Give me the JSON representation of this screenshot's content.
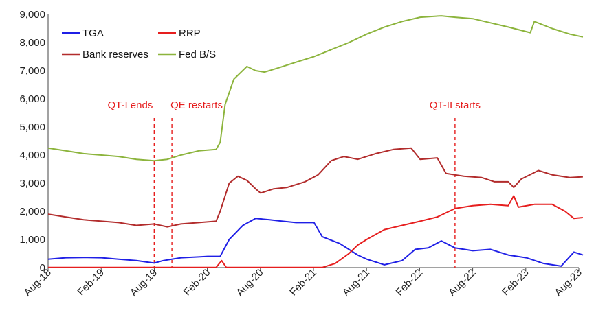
{
  "chart_data": {
    "type": "line",
    "title": "",
    "xlabel": "",
    "ylabel": "",
    "ylim": [
      0,
      9000
    ],
    "yticks": [
      "0",
      "1,000",
      "2,000",
      "3,000",
      "4,000",
      "5,000",
      "6,000",
      "7,000",
      "8,000",
      "9,000"
    ],
    "ytick_values": [
      0,
      1000,
      2000,
      3000,
      4000,
      5000,
      6000,
      7000,
      8000,
      9000
    ],
    "xticks": [
      "Aug-18",
      "Feb-19",
      "Aug-19",
      "Feb-20",
      "Aug-20",
      "Feb-21",
      "Aug-21",
      "Feb-22",
      "Aug-22",
      "Feb-23",
      "Aug-23"
    ],
    "grid": false,
    "legend_position": "top-left",
    "series": [
      {
        "name": "TGA",
        "color": "#1f1fe6",
        "values": [
          [
            "2018-08-01",
            300
          ],
          [
            "2018-10-01",
            350
          ],
          [
            "2018-12-01",
            360
          ],
          [
            "2019-02-01",
            350
          ],
          [
            "2019-04-01",
            300
          ],
          [
            "2019-06-01",
            250
          ],
          [
            "2019-08-01",
            160
          ],
          [
            "2019-09-01",
            250
          ],
          [
            "2019-11-01",
            350
          ],
          [
            "2020-01-01",
            380
          ],
          [
            "2020-02-01",
            400
          ],
          [
            "2020-03-15",
            400
          ],
          [
            "2020-04-15",
            1000
          ],
          [
            "2020-06-01",
            1500
          ],
          [
            "2020-07-15",
            1750
          ],
          [
            "2020-09-01",
            1700
          ],
          [
            "2020-10-15",
            1650
          ],
          [
            "2020-12-01",
            1600
          ],
          [
            "2021-02-01",
            1600
          ],
          [
            "2021-03-01",
            1100
          ],
          [
            "2021-05-01",
            850
          ],
          [
            "2021-07-01",
            450
          ],
          [
            "2021-08-01",
            300
          ],
          [
            "2021-10-01",
            100
          ],
          [
            "2021-12-01",
            250
          ],
          [
            "2022-01-15",
            650
          ],
          [
            "2022-03-01",
            700
          ],
          [
            "2022-04-15",
            950
          ],
          [
            "2022-06-01",
            700
          ],
          [
            "2022-08-01",
            600
          ],
          [
            "2022-10-01",
            650
          ],
          [
            "2022-12-01",
            450
          ],
          [
            "2023-02-01",
            350
          ],
          [
            "2023-04-01",
            150
          ],
          [
            "2023-06-01",
            50
          ],
          [
            "2023-07-15",
            550
          ],
          [
            "2023-08-15",
            450
          ]
        ]
      },
      {
        "name": "RRP",
        "color": "#e61e1e",
        "values": [
          [
            "2018-08-01",
            5
          ],
          [
            "2020-03-01",
            5
          ],
          [
            "2020-03-20",
            250
          ],
          [
            "2020-04-05",
            5
          ],
          [
            "2021-03-01",
            5
          ],
          [
            "2021-04-15",
            150
          ],
          [
            "2021-06-01",
            500
          ],
          [
            "2021-07-01",
            800
          ],
          [
            "2021-08-01",
            1000
          ],
          [
            "2021-10-01",
            1350
          ],
          [
            "2021-12-01",
            1500
          ],
          [
            "2022-02-01",
            1650
          ],
          [
            "2022-04-01",
            1800
          ],
          [
            "2022-06-01",
            2100
          ],
          [
            "2022-08-01",
            2200
          ],
          [
            "2022-10-01",
            2250
          ],
          [
            "2022-12-01",
            2200
          ],
          [
            "2022-12-20",
            2550
          ],
          [
            "2023-01-05",
            2150
          ],
          [
            "2023-03-01",
            2250
          ],
          [
            "2023-05-01",
            2250
          ],
          [
            "2023-06-15",
            2000
          ],
          [
            "2023-07-15",
            1750
          ],
          [
            "2023-08-15",
            1780
          ]
        ]
      },
      {
        "name": "Bank reserves",
        "color": "#b22c2c",
        "values": [
          [
            "2018-08-01",
            1900
          ],
          [
            "2018-10-01",
            1800
          ],
          [
            "2018-12-01",
            1700
          ],
          [
            "2019-02-01",
            1650
          ],
          [
            "2019-04-01",
            1600
          ],
          [
            "2019-06-01",
            1500
          ],
          [
            "2019-08-01",
            1550
          ],
          [
            "2019-09-15",
            1450
          ],
          [
            "2019-11-01",
            1550
          ],
          [
            "2020-01-01",
            1600
          ],
          [
            "2020-03-01",
            1650
          ],
          [
            "2020-03-15",
            2000
          ],
          [
            "2020-04-15",
            3000
          ],
          [
            "2020-05-15",
            3250
          ],
          [
            "2020-06-15",
            3100
          ],
          [
            "2020-07-15",
            2800
          ],
          [
            "2020-08-01",
            2650
          ],
          [
            "2020-09-15",
            2800
          ],
          [
            "2020-11-01",
            2850
          ],
          [
            "2021-01-01",
            3050
          ],
          [
            "2021-02-15",
            3300
          ],
          [
            "2021-04-01",
            3800
          ],
          [
            "2021-05-15",
            3950
          ],
          [
            "2021-07-01",
            3850
          ],
          [
            "2021-09-01",
            4050
          ],
          [
            "2021-11-01",
            4200
          ],
          [
            "2022-01-01",
            4250
          ],
          [
            "2022-02-01",
            3850
          ],
          [
            "2022-04-01",
            3900
          ],
          [
            "2022-05-01",
            3350
          ],
          [
            "2022-07-01",
            3250
          ],
          [
            "2022-09-01",
            3200
          ],
          [
            "2022-10-15",
            3050
          ],
          [
            "2022-12-01",
            3050
          ],
          [
            "2022-12-20",
            2850
          ],
          [
            "2023-01-15",
            3150
          ],
          [
            "2023-03-15",
            3450
          ],
          [
            "2023-05-01",
            3300
          ],
          [
            "2023-07-01",
            3200
          ],
          [
            "2023-08-15",
            3230
          ]
        ]
      },
      {
        "name": "Fed B/S",
        "color": "#8cb43c",
        "values": [
          [
            "2018-08-01",
            4250
          ],
          [
            "2018-10-01",
            4150
          ],
          [
            "2018-12-01",
            4050
          ],
          [
            "2019-02-01",
            4000
          ],
          [
            "2019-04-01",
            3950
          ],
          [
            "2019-06-01",
            3850
          ],
          [
            "2019-08-01",
            3800
          ],
          [
            "2019-09-15",
            3850
          ],
          [
            "2019-11-01",
            4000
          ],
          [
            "2020-01-01",
            4150
          ],
          [
            "2020-03-01",
            4200
          ],
          [
            "2020-03-15",
            4450
          ],
          [
            "2020-04-01",
            5800
          ],
          [
            "2020-05-01",
            6700
          ],
          [
            "2020-06-15",
            7150
          ],
          [
            "2020-07-15",
            7000
          ],
          [
            "2020-08-15",
            6950
          ],
          [
            "2020-10-01",
            7100
          ],
          [
            "2020-12-01",
            7300
          ],
          [
            "2021-02-01",
            7500
          ],
          [
            "2021-04-01",
            7750
          ],
          [
            "2021-06-01",
            8000
          ],
          [
            "2021-08-01",
            8300
          ],
          [
            "2021-10-01",
            8550
          ],
          [
            "2021-12-01",
            8750
          ],
          [
            "2022-02-01",
            8900
          ],
          [
            "2022-04-15",
            8950
          ],
          [
            "2022-06-01",
            8900
          ],
          [
            "2022-08-01",
            8850
          ],
          [
            "2022-10-01",
            8700
          ],
          [
            "2022-12-01",
            8550
          ],
          [
            "2023-02-15",
            8350
          ],
          [
            "2023-03-01",
            8750
          ],
          [
            "2023-05-01",
            8500
          ],
          [
            "2023-07-01",
            8300
          ],
          [
            "2023-08-15",
            8200
          ]
        ]
      }
    ],
    "annotations": [
      {
        "label": "QT-I ends",
        "date": "2019-08-01",
        "color": "#e61e1e"
      },
      {
        "label": "QE restarts",
        "date": "2019-10-01",
        "color": "#e61e1e"
      },
      {
        "label": "QT-II starts",
        "date": "2022-06-01",
        "color": "#e61e1e"
      }
    ]
  }
}
